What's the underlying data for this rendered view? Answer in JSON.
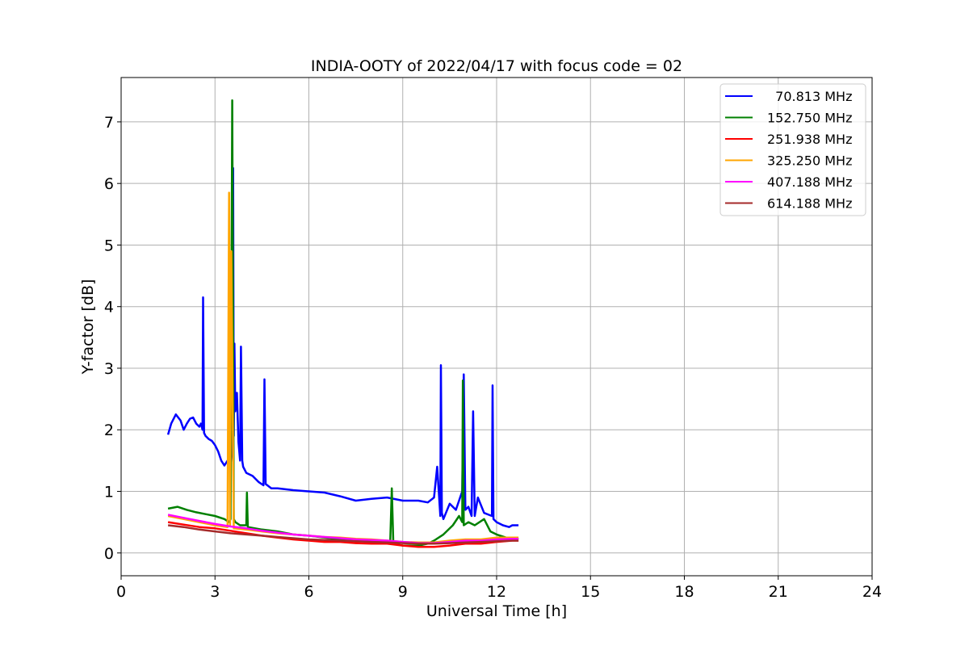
{
  "chart_data": {
    "type": "line",
    "title": "INDIA-OOTY of 2022/04/17 with focus code = 02",
    "xlabel": "Universal Time [h]",
    "ylabel": "Y-factor [dB]",
    "xlim": [
      0,
      24
    ],
    "ylim": [
      -0.37,
      7.72
    ],
    "xticks": [
      "0",
      "3",
      "6",
      "9",
      "12",
      "15",
      "18",
      "21",
      "24"
    ],
    "yticks": [
      "0",
      "1",
      "2",
      "3",
      "4",
      "5",
      "6",
      "7"
    ],
    "grid": true,
    "legend_position": "top-right",
    "series": [
      {
        "name": "  70.813 MHz",
        "color": "#0000ff",
        "x": [
          1.5,
          1.6,
          1.75,
          1.9,
          2.0,
          2.1,
          2.2,
          2.3,
          2.4,
          2.5,
          2.55,
          2.6,
          2.62,
          2.65,
          2.7,
          2.8,
          2.9,
          3.0,
          3.1,
          3.2,
          3.3,
          3.4,
          3.5,
          3.55,
          3.58,
          3.6,
          3.62,
          3.65,
          3.7,
          3.75,
          3.8,
          3.83,
          3.87,
          3.9,
          4.0,
          4.2,
          4.4,
          4.55,
          4.58,
          4.62,
          4.8,
          5.0,
          5.5,
          6.0,
          6.5,
          7.0,
          7.5,
          8.0,
          8.5,
          9.0,
          9.5,
          9.8,
          10.0,
          10.1,
          10.2,
          10.22,
          10.25,
          10.3,
          10.5,
          10.7,
          10.9,
          10.95,
          11.0,
          11.1,
          11.2,
          11.25,
          11.3,
          11.4,
          11.6,
          11.85,
          11.87,
          11.9,
          12.0,
          12.2,
          12.4,
          12.5,
          12.7
        ],
        "y": [
          1.92,
          2.1,
          2.25,
          2.15,
          2.0,
          2.1,
          2.18,
          2.2,
          2.1,
          2.05,
          2.1,
          2.0,
          4.15,
          1.95,
          1.9,
          1.85,
          1.82,
          1.75,
          1.65,
          1.5,
          1.42,
          1.5,
          1.45,
          1.8,
          6.25,
          1.9,
          3.4,
          2.3,
          2.6,
          1.8,
          1.5,
          3.35,
          1.5,
          1.4,
          1.3,
          1.25,
          1.15,
          1.1,
          2.82,
          1.12,
          1.05,
          1.05,
          1.02,
          1.0,
          0.98,
          0.92,
          0.85,
          0.88,
          0.9,
          0.85,
          0.85,
          0.82,
          0.9,
          1.4,
          0.6,
          3.05,
          0.65,
          0.55,
          0.8,
          0.7,
          1.0,
          2.9,
          0.7,
          0.75,
          0.6,
          2.3,
          0.6,
          0.9,
          0.65,
          0.6,
          2.72,
          0.55,
          0.5,
          0.45,
          0.42,
          0.45,
          0.45
        ]
      },
      {
        "name": "152.750 MHz",
        "color": "#008000",
        "x": [
          1.5,
          1.8,
          2.1,
          2.4,
          2.7,
          3.0,
          3.3,
          3.45,
          3.5,
          3.55,
          3.6,
          3.65,
          3.8,
          4.0,
          4.02,
          4.05,
          4.5,
          5.0,
          5.5,
          6.0,
          6.5,
          7.0,
          7.5,
          8.0,
          8.5,
          8.6,
          8.65,
          8.7,
          9.0,
          9.5,
          9.8,
          10.0,
          10.3,
          10.6,
          10.8,
          10.9,
          10.92,
          10.95,
          11.1,
          11.3,
          11.6,
          11.8,
          12.0,
          12.3,
          12.5,
          12.7
        ],
        "y": [
          0.72,
          0.75,
          0.7,
          0.66,
          0.63,
          0.6,
          0.55,
          0.5,
          0.55,
          7.35,
          0.55,
          0.5,
          0.45,
          0.45,
          0.98,
          0.42,
          0.38,
          0.35,
          0.3,
          0.28,
          0.25,
          0.22,
          0.2,
          0.2,
          0.18,
          0.2,
          1.05,
          0.15,
          0.12,
          0.12,
          0.15,
          0.2,
          0.3,
          0.45,
          0.6,
          0.5,
          2.8,
          0.45,
          0.5,
          0.45,
          0.55,
          0.35,
          0.3,
          0.25,
          0.25,
          0.22
        ]
      },
      {
        "name": "251.938 MHz",
        "color": "#ff0000",
        "x": [
          1.5,
          2.0,
          2.5,
          3.0,
          3.5,
          4.0,
          4.5,
          5.0,
          5.5,
          6.0,
          6.5,
          7.0,
          7.5,
          8.0,
          8.5,
          9.0,
          9.5,
          10.0,
          10.5,
          11.0,
          11.5,
          12.0,
          12.5,
          12.7
        ],
        "y": [
          0.5,
          0.46,
          0.42,
          0.4,
          0.36,
          0.32,
          0.28,
          0.25,
          0.22,
          0.2,
          0.18,
          0.18,
          0.16,
          0.15,
          0.15,
          0.12,
          0.1,
          0.1,
          0.12,
          0.15,
          0.15,
          0.18,
          0.2,
          0.2
        ]
      },
      {
        "name": "325.250 MHz",
        "color": "#ffa500",
        "x": [
          1.5,
          2.0,
          2.5,
          3.0,
          3.4,
          3.45,
          3.48,
          3.52,
          3.6,
          4.0,
          4.5,
          5.0,
          5.5,
          6.0,
          6.5,
          7.0,
          7.5,
          8.0,
          8.5,
          9.0,
          9.5,
          10.0,
          10.5,
          11.0,
          11.5,
          12.0,
          12.5,
          12.7
        ],
        "y": [
          0.6,
          0.55,
          0.5,
          0.45,
          0.42,
          5.85,
          0.45,
          4.9,
          0.4,
          0.38,
          0.35,
          0.32,
          0.3,
          0.28,
          0.26,
          0.25,
          0.23,
          0.22,
          0.2,
          0.18,
          0.17,
          0.17,
          0.2,
          0.22,
          0.22,
          0.25,
          0.25,
          0.25
        ]
      },
      {
        "name": "407.188 MHz",
        "color": "#ff00ff",
        "x": [
          1.5,
          2.0,
          2.5,
          3.0,
          3.5,
          4.0,
          4.5,
          5.0,
          5.5,
          6.0,
          6.5,
          7.0,
          7.5,
          8.0,
          8.5,
          9.0,
          9.5,
          10.0,
          10.5,
          11.0,
          11.5,
          12.0,
          12.5,
          12.7
        ],
        "y": [
          0.62,
          0.57,
          0.52,
          0.47,
          0.43,
          0.4,
          0.36,
          0.33,
          0.3,
          0.28,
          0.26,
          0.24,
          0.22,
          0.21,
          0.2,
          0.18,
          0.16,
          0.16,
          0.18,
          0.2,
          0.2,
          0.22,
          0.23,
          0.23
        ]
      },
      {
        "name": "614.188 MHz",
        "color": "#a52a2a",
        "x": [
          1.5,
          2.0,
          2.5,
          3.0,
          3.5,
          4.0,
          4.5,
          5.0,
          5.5,
          6.0,
          6.5,
          7.0,
          7.5,
          8.0,
          8.5,
          9.0,
          9.5,
          10.0,
          10.5,
          11.0,
          11.5,
          12.0,
          12.5,
          12.7
        ],
        "y": [
          0.45,
          0.42,
          0.38,
          0.35,
          0.32,
          0.3,
          0.28,
          0.26,
          0.24,
          0.22,
          0.21,
          0.2,
          0.19,
          0.18,
          0.17,
          0.16,
          0.15,
          0.15,
          0.16,
          0.17,
          0.18,
          0.19,
          0.2,
          0.2
        ]
      }
    ]
  }
}
